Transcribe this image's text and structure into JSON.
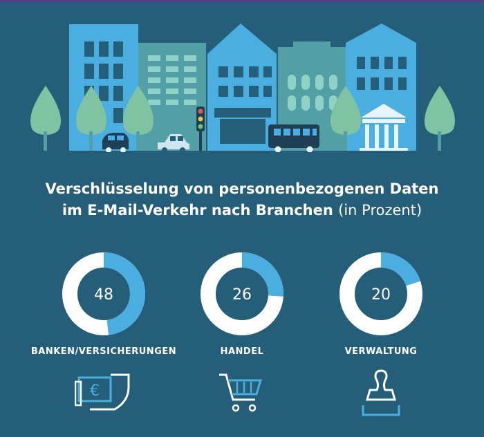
{
  "title": {
    "line1": "Verschlüsselung von personenbezogenen Daten",
    "line2_bold": "im E-Mail-Verkehr nach Branchen",
    "line2_normal": "(in Prozent)"
  },
  "colors": {
    "background": "#245e78",
    "accent": "#4aaee0",
    "ring": "#ffffff"
  },
  "icons": [
    "euro-shield-icon",
    "shopping-cart-icon",
    "stamp-icon"
  ],
  "chart_data": {
    "type": "pie",
    "categories": [
      "BANKEN/VERSICHERUNGEN",
      "HANDEL",
      "VERWALTUNG"
    ],
    "values": [
      48,
      26,
      20
    ],
    "unit": "Prozent",
    "title": "Verschlüsselung von personenbezogenen Daten im E-Mail-Verkehr nach Branchen (in Prozent)"
  }
}
